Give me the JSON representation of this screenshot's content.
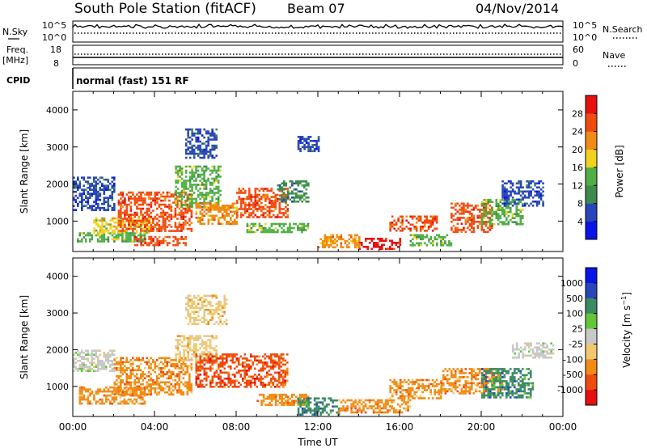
{
  "header": {
    "title": "South Pole Station (fitACF)",
    "beam": "Beam 07",
    "date": "04/Nov/2014"
  },
  "panels": {
    "nsky": {
      "label": "N.Sky",
      "right_label": "N.Search",
      "left_ticks": [
        "10^5",
        "10^0"
      ],
      "right_ticks": [
        "10^5",
        "10^0"
      ]
    },
    "freq": {
      "label_line1": "Freq.",
      "label_line2": "[MHz]",
      "right_label": "Nave",
      "left_ticks": [
        "18",
        "8"
      ],
      "right_ticks": [
        "60",
        "0"
      ]
    },
    "cpid": {
      "label": "CPID",
      "text": "normal (fast) 151 RF"
    }
  },
  "colors": {
    "power": [
      "#0a14e6",
      "#2846b8",
      "#3c8a4e",
      "#4fae44",
      "#f0d21e",
      "#f08c14",
      "#f04c10",
      "#e61010"
    ],
    "velocity": [
      "#0a14e6",
      "#2846b8",
      "#3c8a64",
      "#62c83a",
      "#c8c8c8",
      "#f0c870",
      "#f08c14",
      "#f04c10",
      "#e61010"
    ]
  },
  "chart_data": [
    {
      "type": "heatmap",
      "quantity": "power",
      "ylabel": "Slant Range [km]",
      "ylim": [
        180,
        4500
      ],
      "y_ticks": [
        "4000",
        "3000",
        "2000",
        "1000"
      ],
      "x_ticks": [
        "00:00",
        "04:00",
        "08:00",
        "12:00",
        "16:00",
        "20:00",
        "00:00"
      ],
      "colorbar_label": "Power [dB]",
      "colorbar_ticks": [
        "28",
        "24",
        "20",
        "16",
        "12",
        "8",
        "4"
      ],
      "colorbar_range": [
        0,
        32
      ],
      "regions": [
        {
          "t": [
            0.0,
            2.0
          ],
          "r": [
            1300,
            2200
          ],
          "v": 6
        },
        {
          "t": [
            0.2,
            3.5
          ],
          "r": [
            450,
            700
          ],
          "v": 14
        },
        {
          "t": [
            1.0,
            3.8
          ],
          "r": [
            700,
            1100
          ],
          "v": 18
        },
        {
          "t": [
            2.2,
            5.8
          ],
          "r": [
            750,
            1800
          ],
          "v": 26
        },
        {
          "t": [
            3.0,
            5.5
          ],
          "r": [
            350,
            600
          ],
          "v": 24
        },
        {
          "t": [
            5.0,
            7.2
          ],
          "r": [
            1400,
            2500
          ],
          "v": 12
        },
        {
          "t": [
            6.0,
            8.0
          ],
          "r": [
            950,
            1500
          ],
          "v": 22
        },
        {
          "t": [
            8.0,
            10.5
          ],
          "r": [
            1100,
            1900
          ],
          "v": 24
        },
        {
          "t": [
            8.5,
            11.5
          ],
          "r": [
            700,
            950
          ],
          "v": 14
        },
        {
          "t": [
            10.0,
            11.5
          ],
          "r": [
            1500,
            2100
          ],
          "v": 10
        },
        {
          "t": [
            12.0,
            14.0
          ],
          "r": [
            300,
            650
          ],
          "v": 20
        },
        {
          "t": [
            14.0,
            16.0
          ],
          "r": [
            250,
            550
          ],
          "v": 30
        },
        {
          "t": [
            15.5,
            17.8
          ],
          "r": [
            750,
            1150
          ],
          "v": 24
        },
        {
          "t": [
            16.5,
            18.5
          ],
          "r": [
            350,
            650
          ],
          "v": 12
        },
        {
          "t": [
            18.5,
            20.5
          ],
          "r": [
            700,
            1500
          ],
          "v": 26
        },
        {
          "t": [
            20.0,
            22.0
          ],
          "r": [
            900,
            1600
          ],
          "v": 14
        },
        {
          "t": [
            21.0,
            23.0
          ],
          "r": [
            1400,
            2100
          ],
          "v": 6
        },
        {
          "t": [
            5.5,
            7.0
          ],
          "r": [
            2700,
            3500
          ],
          "v": 5
        },
        {
          "t": [
            11.0,
            12.0
          ],
          "r": [
            2900,
            3300
          ],
          "v": 5
        }
      ]
    },
    {
      "type": "heatmap",
      "quantity": "velocity",
      "ylabel": "Slant Range [km]",
      "ylim": [
        180,
        4500
      ],
      "y_ticks": [
        "4000",
        "3000",
        "2000",
        "1000"
      ],
      "x_ticks": [
        "00:00",
        "04:00",
        "08:00",
        "12:00",
        "16:00",
        "20:00",
        "00:00"
      ],
      "xlabel": "Time UT",
      "colorbar_label": "Velocity [m s",
      "colorbar_ticks": [
        "1000",
        "500",
        "100",
        "25",
        "-25",
        "-100",
        "-500",
        "-1000"
      ],
      "regions": [
        {
          "t": [
            0.0,
            2.0
          ],
          "r": [
            1400,
            2000
          ],
          "v": 0
        },
        {
          "t": [
            0.3,
            3.5
          ],
          "r": [
            550,
            1000
          ],
          "v": -300
        },
        {
          "t": [
            2.0,
            5.8
          ],
          "r": [
            800,
            1800
          ],
          "v": -400
        },
        {
          "t": [
            5.0,
            7.0
          ],
          "r": [
            1700,
            2400
          ],
          "v": -80
        },
        {
          "t": [
            6.0,
            10.5
          ],
          "r": [
            1000,
            1900
          ],
          "v": -600
        },
        {
          "t": [
            9.0,
            11.5
          ],
          "r": [
            500,
            800
          ],
          "v": -150
        },
        {
          "t": [
            11.0,
            13.0
          ],
          "r": [
            250,
            700
          ],
          "v": 120
        },
        {
          "t": [
            13.0,
            16.5
          ],
          "r": [
            300,
            650
          ],
          "v": -200
        },
        {
          "t": [
            15.5,
            18.0
          ],
          "r": [
            700,
            1200
          ],
          "v": -350
        },
        {
          "t": [
            18.0,
            21.0
          ],
          "r": [
            800,
            1500
          ],
          "v": -250
        },
        {
          "t": [
            20.0,
            22.5
          ],
          "r": [
            700,
            1500
          ],
          "v": 150
        },
        {
          "t": [
            21.5,
            23.5
          ],
          "r": [
            1800,
            2200
          ],
          "v": 0
        },
        {
          "t": [
            5.5,
            7.5
          ],
          "r": [
            2700,
            3500
          ],
          "v": -60
        }
      ]
    }
  ]
}
